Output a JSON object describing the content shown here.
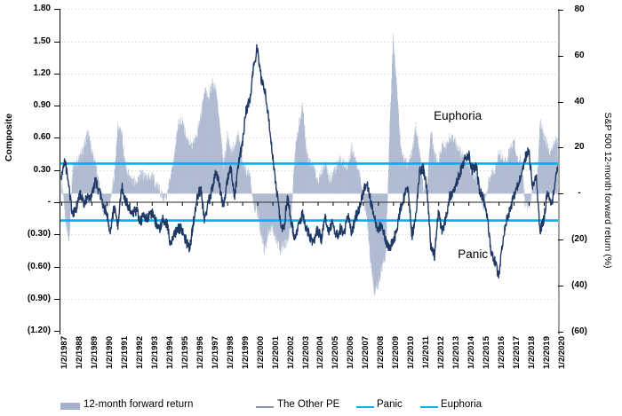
{
  "chart_data": {
    "type": "combo",
    "title": "",
    "left_axis": {
      "label": "Composite",
      "min": -1.2,
      "max": 1.8,
      "tick_labels": [
        "1.80",
        "1.50",
        "1.20",
        "0.90",
        "0.60",
        "0.30",
        "-",
        "(0.30)",
        "(0.60)",
        "(0.90)",
        "(1.20)"
      ],
      "tick_values": [
        1.8,
        1.5,
        1.2,
        0.9,
        0.6,
        0.3,
        0,
        -0.3,
        -0.6,
        -0.9,
        -1.2
      ]
    },
    "right_axis": {
      "label": "S&P 500 12-month forward return (%)",
      "min": -60,
      "max": 80,
      "tick_labels": [
        "80",
        "60",
        "40",
        "20",
        "-",
        "(20)",
        "(40)",
        "(60)"
      ],
      "tick_values": [
        80,
        60,
        40,
        20,
        0,
        -20,
        -40,
        -60
      ]
    },
    "x_axis": {
      "labels": [
        "1/2/1987",
        "1/2/1988",
        "1/2/1989",
        "1/2/1990",
        "1/2/1991",
        "1/2/1992",
        "1/2/1993",
        "1/2/1994",
        "1/2/1995",
        "1/2/1996",
        "1/2/1997",
        "1/2/1998",
        "1/2/1999",
        "1/2/2000",
        "1/2/2001",
        "1/2/2002",
        "1/2/2003",
        "1/2/2004",
        "1/2/2005",
        "1/2/2006",
        "1/2/2007",
        "1/2/2008",
        "1/2/2009",
        "1/2/2010",
        "1/2/2011",
        "1/2/2012",
        "1/2/2013",
        "1/2/2014",
        "1/2/2015",
        "1/2/2016",
        "1/2/2017",
        "1/2/2018",
        "1/2/2019",
        "1/2/2020"
      ],
      "label_years": [
        1987,
        1988,
        1989,
        1990,
        1991,
        1992,
        1993,
        1994,
        1995,
        1996,
        1997,
        1998,
        1999,
        2000,
        2001,
        2002,
        2003,
        2004,
        2005,
        2006,
        2007,
        2008,
        2009,
        2010,
        2011,
        2012,
        2013,
        2014,
        2015,
        2016,
        2017,
        2018,
        2019,
        2020
      ],
      "range": [
        1987,
        2020.1
      ],
      "grid": false
    },
    "grid_color": "#d5deef",
    "zero_axis_color": "#4d4d4d",
    "hlines": [
      {
        "name": "Euphoria",
        "value": 0.36,
        "axis": "left",
        "color": "#00b0f0"
      },
      {
        "name": "Panic",
        "value": -0.17,
        "axis": "left",
        "color": "#00b0f0"
      }
    ],
    "annotations": [
      {
        "text": "Euphoria",
        "year": 2011.7,
        "value": 0.8
      },
      {
        "text": "Panic",
        "year": 2013.3,
        "value": -0.49
      }
    ],
    "series": [
      {
        "name": "12-month forward return",
        "type": "bar",
        "axis": "right",
        "color": "#a4b1ca",
        "x_start": 1987.0,
        "x_step": 0.25,
        "values": [
          5,
          -10,
          -21,
          12,
          14,
          16,
          20,
          27,
          19,
          14,
          4,
          -8,
          -5,
          -3,
          8,
          29,
          26,
          12,
          8,
          5,
          6,
          8,
          8,
          7,
          8,
          4,
          2,
          -2,
          -2,
          8,
          18,
          30,
          32,
          25,
          21,
          22,
          26,
          34,
          45,
          42,
          48,
          45,
          30,
          12,
          25,
          18,
          22,
          26,
          14,
          10,
          8,
          -5,
          -8,
          -18,
          -25,
          -15,
          -16,
          -20,
          -25,
          -22,
          -22,
          -10,
          20,
          30,
          38,
          18,
          14,
          11,
          5,
          10,
          14,
          6,
          8,
          12,
          15,
          13,
          12,
          20,
          14,
          10,
          -2,
          -10,
          -30,
          -42,
          -40,
          -32,
          -28,
          25,
          68,
          45,
          20,
          14,
          13,
          18,
          29,
          18,
          2,
          3,
          28,
          16,
          13,
          22,
          20,
          25,
          24,
          20,
          17,
          15,
          12,
          10,
          6,
          2,
          -6,
          2,
          9,
          10,
          18,
          16,
          14,
          19,
          23,
          14,
          15,
          -5,
          -6,
          3,
          2,
          32,
          25,
          20,
          18,
          24
        ]
      },
      {
        "name": "The Other PE",
        "type": "line",
        "axis": "left",
        "color": "#1f3864",
        "x_start": 1987.0,
        "x_step": 0.25,
        "values": [
          0.25,
          0.38,
          0.15,
          -0.12,
          -0.05,
          0.08,
          -0.02,
          0.05,
          0.05,
          0.2,
          0.1,
          0.0,
          -0.1,
          -0.28,
          -0.05,
          -0.22,
          0.15,
          0.02,
          -0.05,
          -0.1,
          -0.08,
          -0.18,
          -0.12,
          -0.15,
          -0.1,
          -0.18,
          -0.25,
          -0.15,
          -0.2,
          -0.4,
          -0.3,
          -0.25,
          -0.25,
          -0.35,
          -0.44,
          -0.2,
          0.05,
          0.12,
          -0.18,
          0.0,
          0.12,
          0.28,
          0.15,
          -0.05,
          0.2,
          0.32,
          0.05,
          0.35,
          0.55,
          0.85,
          0.95,
          1.25,
          1.45,
          1.15,
          1.05,
          0.8,
          0.45,
          0.15,
          -0.15,
          -0.28,
          0.08,
          -0.18,
          -0.35,
          -0.22,
          -0.1,
          -0.25,
          -0.32,
          -0.38,
          -0.25,
          -0.35,
          -0.15,
          -0.28,
          -0.18,
          -0.32,
          -0.25,
          -0.3,
          -0.12,
          -0.28,
          -0.15,
          -0.05,
          0.08,
          0.18,
          0.02,
          -0.15,
          -0.25,
          -0.2,
          -0.35,
          -0.42,
          -0.38,
          -0.25,
          -0.05,
          0.05,
          0.15,
          -0.32,
          -0.15,
          0.28,
          0.32,
          0.12,
          -0.4,
          -0.5,
          -0.1,
          -0.28,
          -0.15,
          0.05,
          0.1,
          0.2,
          0.3,
          0.4,
          0.45,
          0.3,
          0.35,
          0.1,
          0.05,
          -0.15,
          -0.45,
          -0.55,
          -0.7,
          -0.4,
          -0.18,
          -0.08,
          0.05,
          0.15,
          0.25,
          0.42,
          0.48,
          0.15,
          0.25,
          -0.28,
          -0.15,
          0.1,
          -0.05,
          0.2,
          0.38
        ]
      }
    ],
    "legend": {
      "position": "bottom",
      "items": [
        {
          "label": "12-month forward return",
          "swatch": "bar",
          "color": "#a4b1ca"
        },
        {
          "label": "The Other PE",
          "swatch": "line",
          "color": "#8591a4"
        },
        {
          "label": "Panic",
          "swatch": "line",
          "color": "#00b0f0"
        },
        {
          "label": "Euphoria",
          "swatch": "line",
          "color": "#00b0f0"
        }
      ]
    }
  }
}
